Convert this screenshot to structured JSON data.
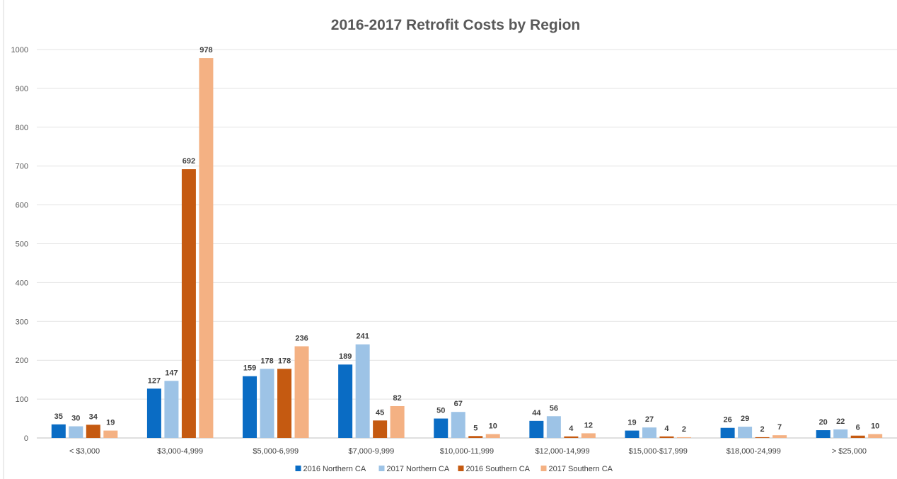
{
  "chart_data": {
    "type": "bar",
    "title": "2016-2017 Retrofit Costs by Region",
    "xlabel": "",
    "ylabel": "",
    "ylim": [
      0,
      1000
    ],
    "yticks": [
      0,
      100,
      200,
      300,
      400,
      500,
      600,
      700,
      800,
      900,
      1000
    ],
    "grid": true,
    "legend_position": "bottom",
    "categories": [
      "< $3,000",
      "$3,000-4,999",
      "$5,000-6,999",
      "$7,000-9,999",
      "$10,000-11,999",
      "$12,000-14,999",
      "$15,000-$17,999",
      "$18,000-24,999",
      "> $25,000"
    ],
    "series": [
      {
        "name": "2016 Northern CA",
        "color": "#0a6cc4",
        "values": [
          35,
          127,
          159,
          189,
          50,
          44,
          19,
          26,
          20
        ]
      },
      {
        "name": "2017 Northern CA",
        "color": "#9dc3e6",
        "values": [
          30,
          147,
          178,
          241,
          67,
          56,
          27,
          29,
          22
        ]
      },
      {
        "name": "2016 Southern CA",
        "color": "#c55a11",
        "values": [
          34,
          692,
          178,
          45,
          5,
          4,
          4,
          2,
          6
        ]
      },
      {
        "name": "2017 Southern CA",
        "color": "#f4b183",
        "values": [
          19,
          978,
          236,
          82,
          10,
          12,
          2,
          7,
          10
        ]
      }
    ]
  }
}
